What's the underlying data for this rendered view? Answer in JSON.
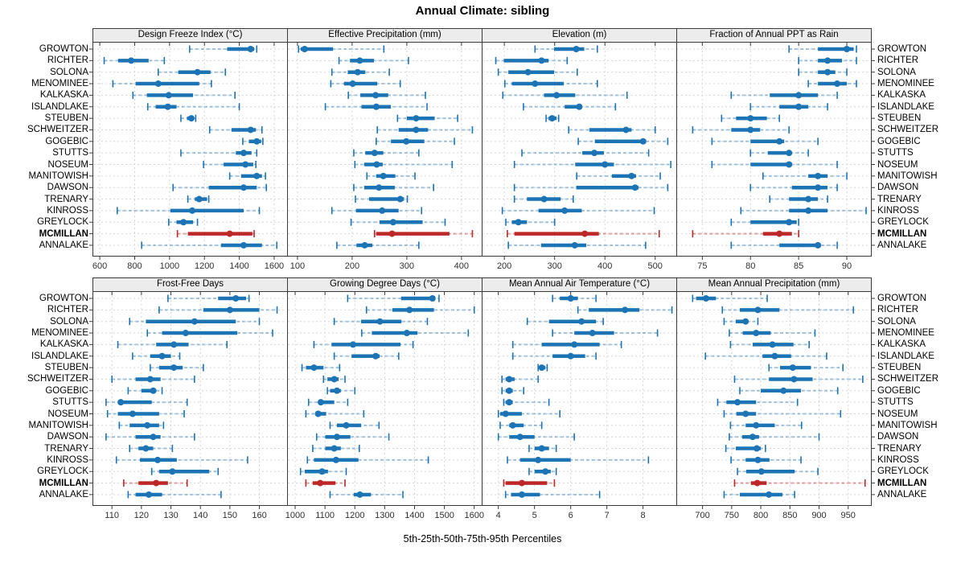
{
  "title": "Annual Climate: sibling",
  "caption": "5th-25th-50th-75th-95th Percentiles",
  "sites": [
    "GROWTON",
    "RICHTER",
    "SOLONA",
    "MENOMINEE",
    "KALKASKA",
    "ISLANDLAKE",
    "STEUBEN",
    "SCHWEITZER",
    "GOGEBIC",
    "STUTTS",
    "NOSEUM",
    "MANITOWISH",
    "DAWSON",
    "TRENARY",
    "KINROSS",
    "GREYLOCK",
    "MCMILLAN",
    "ANNALAKE"
  ],
  "highlight_site": "MCMILLAN",
  "colors": {
    "point": "#1d74b5",
    "point_light": "rgba(29,116,181,0.40)",
    "highlight": "#bd2727",
    "highlight_light": "rgba(189,39,39,0.42)",
    "strip_bg": "#ececec",
    "panel_border": "#3a3a3a",
    "grid": "#d6d6d6",
    "tick": "#3a3a3a"
  },
  "chart_data": [
    {
      "type": "percentile-dotplot",
      "row": 0,
      "col": 0,
      "title": "Design Freeze Index (°C)",
      "percentiles": [
        5,
        25,
        50,
        75,
        95
      ],
      "ticks": [
        600,
        800,
        1000,
        1200,
        1400,
        1600
      ],
      "domain": [
        558,
        1674
      ],
      "values": [
        [
          1115,
          1330,
          1465,
          1485,
          1500
        ],
        [
          625,
          705,
          780,
          880,
          970
        ],
        [
          935,
          1050,
          1160,
          1235,
          1320
        ],
        [
          675,
          805,
          935,
          1170,
          1240
        ],
        [
          790,
          870,
          995,
          1135,
          1375
        ],
        [
          875,
          920,
          990,
          1040,
          1400
        ],
        [
          1065,
          1100,
          1125,
          1140,
          1150
        ],
        [
          1230,
          1355,
          1465,
          1495,
          1530
        ],
        [
          1420,
          1455,
          1500,
          1525,
          1535
        ],
        [
          1065,
          1380,
          1425,
          1470,
          1500
        ],
        [
          1195,
          1310,
          1435,
          1480,
          1495
        ],
        [
          1345,
          1410,
          1500,
          1530,
          1550
        ],
        [
          1020,
          1225,
          1425,
          1500,
          1555
        ],
        [
          1105,
          1145,
          1170,
          1215,
          1225
        ],
        [
          700,
          1005,
          1130,
          1425,
          1515
        ],
        [
          995,
          1040,
          1080,
          1135,
          1160
        ],
        [
          1045,
          1105,
          1345,
          1475,
          1485
        ],
        [
          840,
          1295,
          1425,
          1530,
          1615
        ]
      ]
    },
    {
      "type": "percentile-dotplot",
      "row": 0,
      "col": 1,
      "title": "Effective Precipitation (mm)",
      "percentiles": [
        5,
        25,
        50,
        75,
        95
      ],
      "ticks": [
        100,
        200,
        300,
        400
      ],
      "domain": [
        81,
        437
      ],
      "values": [
        [
          102,
          106,
          113,
          165,
          258
        ],
        [
          176,
          196,
          214,
          240,
          303
        ],
        [
          163,
          192,
          210,
          224,
          268
        ],
        [
          161,
          185,
          201,
          246,
          288
        ],
        [
          193,
          215,
          243,
          266,
          334
        ],
        [
          151,
          217,
          244,
          271,
          337
        ],
        [
          283,
          300,
          317,
          351,
          393
        ],
        [
          246,
          285,
          317,
          339,
          420
        ],
        [
          244,
          271,
          299,
          332,
          387
        ],
        [
          203,
          224,
          241,
          257,
          322
        ],
        [
          205,
          222,
          245,
          256,
          383
        ],
        [
          227,
          244,
          257,
          279,
          315
        ],
        [
          203,
          222,
          249,
          278,
          349
        ],
        [
          206,
          231,
          288,
          295,
          301
        ],
        [
          163,
          207,
          255,
          285,
          327
        ],
        [
          198,
          250,
          275,
          329,
          370
        ],
        [
          241,
          244,
          273,
          378,
          420
        ],
        [
          172,
          208,
          223,
          237,
          322
        ]
      ]
    },
    {
      "type": "percentile-dotplot",
      "row": 0,
      "col": 2,
      "title": "Elevation (m)",
      "percentiles": [
        5,
        25,
        50,
        75,
        95
      ],
      "ticks": [
        200,
        300,
        400,
        500
      ],
      "domain": [
        155,
        542
      ],
      "values": [
        [
          261,
          299,
          343,
          359,
          385
        ],
        [
          183,
          199,
          274,
          288,
          325
        ],
        [
          188,
          208,
          247,
          299,
          345
        ],
        [
          201,
          215,
          261,
          318,
          385
        ],
        [
          197,
          279,
          304,
          341,
          444
        ],
        [
          238,
          320,
          349,
          354,
          421
        ],
        [
          283,
          288,
          295,
          304,
          308
        ],
        [
          328,
          369,
          442,
          453,
          500
        ],
        [
          347,
          380,
          476,
          482,
          525
        ],
        [
          235,
          355,
          379,
          398,
          487
        ],
        [
          220,
          341,
          400,
          418,
          531
        ],
        [
          344,
          414,
          453,
          462,
          510
        ],
        [
          220,
          343,
          460,
          467,
          525
        ],
        [
          220,
          245,
          279,
          312,
          337
        ],
        [
          196,
          268,
          320,
          354,
          498
        ],
        [
          203,
          215,
          228,
          245,
          300
        ],
        [
          206,
          220,
          360,
          388,
          508
        ],
        [
          208,
          273,
          340,
          363,
          481
        ]
      ]
    },
    {
      "type": "percentile-dotplot",
      "row": 0,
      "col": 3,
      "title": "Fraction of Annual PPT as Rain",
      "percentiles": [
        5,
        25,
        50,
        75,
        95
      ],
      "ticks": [
        75,
        80,
        85,
        90
      ],
      "domain": [
        72.3,
        92.5
      ],
      "values": [
        [
          84,
          87,
          90,
          90.7,
          91
        ],
        [
          85,
          87,
          88,
          89.5,
          91
        ],
        [
          85,
          87,
          88,
          88.8,
          90
        ],
        [
          86,
          87,
          89,
          90,
          91
        ],
        [
          78,
          82,
          85,
          87,
          89
        ],
        [
          80,
          83,
          85,
          86,
          88
        ],
        [
          77,
          78.5,
          80,
          81.7,
          83
        ],
        [
          74,
          78,
          80,
          81,
          84
        ],
        [
          76,
          80,
          83,
          83.5,
          87
        ],
        [
          80,
          81.8,
          84,
          84.3,
          86
        ],
        [
          76,
          80,
          84,
          84.3,
          89
        ],
        [
          81.3,
          86,
          87,
          88,
          90
        ],
        [
          80,
          84.3,
          87,
          88,
          89
        ],
        [
          82,
          84,
          86,
          87,
          88
        ],
        [
          79,
          84,
          86,
          88,
          92
        ],
        [
          78,
          80,
          84,
          84.8,
          85
        ],
        [
          74,
          81.3,
          83,
          84.3,
          85
        ],
        [
          78,
          83,
          87,
          87.3,
          89
        ]
      ]
    },
    {
      "type": "percentile-dotplot",
      "row": 1,
      "col": 0,
      "title": "Frost-Free Days",
      "percentiles": [
        5,
        25,
        50,
        75,
        95
      ],
      "ticks": [
        110,
        120,
        130,
        140,
        150,
        160
      ],
      "domain": [
        103.4,
        169.4
      ],
      "values": [
        [
          129,
          146,
          152,
          155.5,
          156.5
        ],
        [
          126,
          141,
          150,
          160,
          166
        ],
        [
          116,
          121.5,
          138,
          152,
          160
        ],
        [
          122,
          127,
          135,
          152.5,
          164.5
        ],
        [
          112,
          125,
          131,
          136,
          149
        ],
        [
          117,
          123,
          127,
          130,
          133
        ],
        [
          123,
          126,
          131,
          134,
          141
        ],
        [
          110,
          118,
          123,
          126.5,
          138
        ],
        [
          115.5,
          120,
          124,
          125,
          127
        ],
        [
          108,
          112,
          113,
          123.5,
          135.5
        ],
        [
          108.5,
          112,
          117,
          126,
          134.5
        ],
        [
          112.5,
          116,
          122,
          126,
          127.5
        ],
        [
          108,
          118,
          124,
          126.5,
          138
        ],
        [
          116,
          119,
          121.5,
          124,
          130.5
        ],
        [
          111.5,
          119.5,
          125.5,
          132,
          156
        ],
        [
          123.5,
          126,
          130.5,
          143,
          146
        ],
        [
          114,
          119,
          125,
          129,
          135.5
        ],
        [
          115.5,
          118,
          122.5,
          127,
          147
        ]
      ]
    },
    {
      "type": "percentile-dotplot",
      "row": 1,
      "col": 1,
      "title": "Growing Degree Days (°C)",
      "percentiles": [
        5,
        25,
        50,
        75,
        95
      ],
      "ticks": [
        1000,
        1100,
        1200,
        1300,
        1400,
        1500,
        1600
      ],
      "domain": [
        973,
        1625
      ],
      "values": [
        [
          1176,
          1355,
          1460,
          1470,
          1482
        ],
        [
          1239,
          1326,
          1383,
          1465,
          1600
        ],
        [
          1131,
          1221,
          1284,
          1356,
          1443
        ],
        [
          1223,
          1257,
          1374,
          1410,
          1580
        ],
        [
          1063,
          1122,
          1194,
          1353,
          1395
        ],
        [
          1131,
          1189,
          1270,
          1283,
          1347
        ],
        [
          1023,
          1036,
          1063,
          1095,
          1149
        ],
        [
          1095,
          1108,
          1131,
          1146,
          1167
        ],
        [
          1108,
          1117,
          1140,
          1153,
          1200
        ],
        [
          1045,
          1077,
          1086,
          1131,
          1176
        ],
        [
          1036,
          1068,
          1077,
          1104,
          1230
        ],
        [
          1117,
          1140,
          1171,
          1221,
          1281
        ],
        [
          1072,
          1101,
          1140,
          1185,
          1314
        ],
        [
          1059,
          1101,
          1131,
          1153,
          1215
        ],
        [
          1041,
          1063,
          1137,
          1212,
          1446
        ],
        [
          1018,
          1032,
          1090,
          1110,
          1171
        ],
        [
          1036,
          1059,
          1084,
          1135,
          1167
        ],
        [
          1117,
          1196,
          1217,
          1254,
          1361
        ]
      ]
    },
    {
      "type": "percentile-dotplot",
      "row": 1,
      "col": 2,
      "title": "Mean Annual Air Temperature (°C)",
      "percentiles": [
        5,
        25,
        50,
        75,
        95
      ],
      "ticks": [
        4,
        5,
        6,
        7,
        8
      ],
      "domain": [
        3.54,
        8.92
      ],
      "values": [
        [
          5.5,
          5.7,
          6.0,
          6.2,
          6.7
        ],
        [
          6.2,
          6.5,
          7.5,
          7.9,
          8.8
        ],
        [
          4.8,
          5.4,
          6.3,
          6.7,
          6.9
        ],
        [
          5.5,
          6.1,
          6.6,
          7.2,
          8.4
        ],
        [
          4.4,
          5.2,
          6.1,
          6.8,
          7.4
        ],
        [
          4.4,
          5.5,
          6.0,
          6.4,
          6.7
        ],
        [
          5.1,
          5.15,
          5.2,
          5.3,
          5.35
        ],
        [
          4.1,
          4.2,
          4.3,
          4.45,
          5.1
        ],
        [
          4.1,
          4.2,
          4.3,
          4.4,
          4.7
        ],
        [
          4.15,
          4.2,
          4.3,
          4.4,
          5.4
        ],
        [
          4.0,
          4.05,
          4.2,
          4.65,
          5.7
        ],
        [
          4.05,
          4.3,
          4.4,
          4.7,
          5.2
        ],
        [
          4.0,
          4.3,
          4.6,
          5.0,
          6.1
        ],
        [
          4.85,
          5.0,
          5.2,
          5.4,
          5.6
        ],
        [
          4.25,
          4.6,
          5.1,
          6.0,
          8.15
        ],
        [
          4.85,
          5.0,
          5.3,
          5.45,
          5.6
        ],
        [
          4.15,
          4.2,
          4.65,
          5.35,
          5.55
        ],
        [
          4.2,
          4.35,
          4.65,
          5.15,
          6.8
        ]
      ]
    },
    {
      "type": "percentile-dotplot",
      "row": 1,
      "col": 3,
      "title": "Mean Annual Precipitation (mm)",
      "percentiles": [
        5,
        25,
        50,
        75,
        95
      ],
      "ticks": [
        700,
        750,
        800,
        850,
        900,
        950
      ],
      "domain": [
        655,
        989
      ],
      "values": [
        [
          683,
          689,
          706,
          723,
          811
        ],
        [
          734,
          764,
          795,
          832,
          959
        ],
        [
          737,
          757,
          774,
          778,
          795
        ],
        [
          746,
          769,
          792,
          817,
          893
        ],
        [
          748,
          786,
          820,
          856,
          883
        ],
        [
          705,
          803,
          824,
          852,
          913
        ],
        [
          814,
          833,
          855,
          886,
          941
        ],
        [
          755,
          814,
          857,
          889,
          975
        ],
        [
          764,
          800,
          839,
          869,
          932
        ],
        [
          726,
          741,
          760,
          792,
          863
        ],
        [
          737,
          758,
          774,
          792,
          937
        ],
        [
          748,
          774,
          792,
          824,
          870
        ],
        [
          746,
          768,
          786,
          797,
          900
        ],
        [
          740,
          757,
          793,
          800,
          808
        ],
        [
          749,
          774,
          795,
          815,
          869
        ],
        [
          760,
          775,
          801,
          858,
          898
        ],
        [
          755,
          783,
          794,
          810,
          979
        ],
        [
          737,
          764,
          814,
          837,
          858
        ]
      ]
    }
  ]
}
